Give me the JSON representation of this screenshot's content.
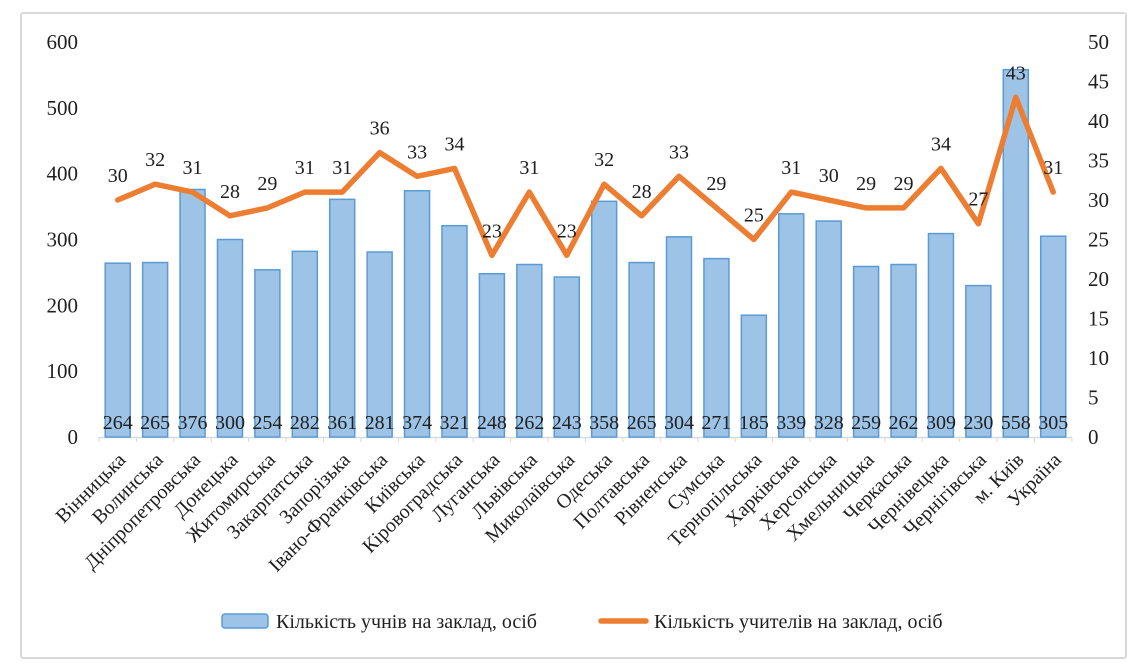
{
  "chart_data": {
    "type": "bar",
    "subtype": "combo-bar-line",
    "title": "",
    "categories": [
      "Вінницька",
      "Волинська",
      "Дніпропетровська",
      "Донецька",
      "Житомирська",
      "Закарпатська",
      "Запорізька",
      "Івано-Франківська",
      "Київська",
      "Кіровоградська",
      "Луганська",
      "Львівська",
      "Миколаївська",
      "Одеська",
      "Полтавська",
      "Рівненська",
      "Сумська",
      "Тернопільська",
      "Харківська",
      "Херсонська",
      "Хмельницька",
      "Черкаська",
      "Чернівецька",
      "Чернігівська",
      "м. Київ",
      "Україна"
    ],
    "series": [
      {
        "name": "Кількість учнів на заклад, осіб",
        "type": "bar",
        "axis": "left",
        "values": [
          264,
          265,
          376,
          300,
          254,
          282,
          361,
          281,
          374,
          321,
          248,
          262,
          243,
          358,
          265,
          304,
          271,
          185,
          339,
          328,
          259,
          262,
          309,
          230,
          558,
          305
        ],
        "fill": "#9DC3E6",
        "stroke": "#5B9BD5",
        "labels_position": "inside-base"
      },
      {
        "name": "Кількість учителів на заклад, осіб",
        "type": "line",
        "axis": "right",
        "values": [
          30,
          32,
          31,
          28,
          29,
          31,
          31,
          36,
          33,
          34,
          23,
          31,
          23,
          32,
          28,
          33,
          29,
          25,
          31,
          30,
          29,
          29,
          34,
          27,
          43,
          31
        ],
        "color": "#ED7D31",
        "labels_position": "above"
      }
    ],
    "left_axis": {
      "min": 0,
      "max": 600,
      "step": 100
    },
    "right_axis": {
      "min": 0,
      "max": 50,
      "step": 5
    },
    "grid": false,
    "legend_position": "bottom",
    "colors": {
      "bar_fill": "#9DC3E6",
      "bar_stroke": "#5B9BD5",
      "line": "#ED7D31",
      "axis_line": "#D9D9D9",
      "frame_border": "#D9D9D9",
      "text": "#1f1f1f"
    }
  }
}
